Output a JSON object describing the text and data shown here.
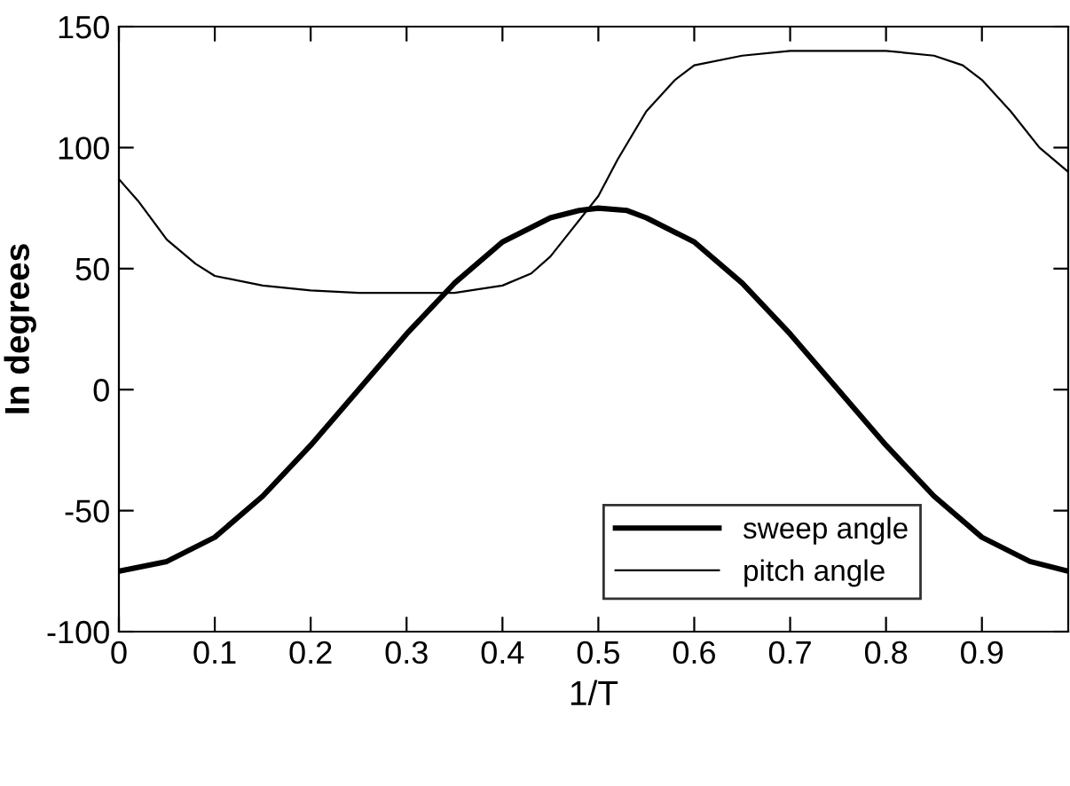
{
  "chart_data": {
    "type": "line",
    "xlabel": "1/T",
    "ylabel": "In degrees",
    "xlim": [
      0,
      0.99
    ],
    "ylim": [
      -100,
      150
    ],
    "xticks": [
      0,
      0.1,
      0.2,
      0.3,
      0.4,
      0.5,
      0.6,
      0.7,
      0.8,
      0.9
    ],
    "yticks": [
      -100,
      -50,
      0,
      50,
      100,
      150
    ],
    "grid": false,
    "legend": "bottom right",
    "marker": "none",
    "line_style": "solid",
    "series": [
      {
        "name": "sweep angle",
        "color": "#000000",
        "x": [
          0,
          0.05,
          0.1,
          0.15,
          0.2,
          0.25,
          0.3,
          0.35,
          0.4,
          0.45,
          0.48,
          0.5,
          0.53,
          0.55,
          0.6,
          0.65,
          0.7,
          0.75,
          0.8,
          0.85,
          0.9,
          0.95,
          0.99
        ],
        "values": [
          -75,
          -71,
          -61,
          -44,
          -23,
          0,
          23,
          44,
          61,
          71,
          74,
          75,
          74,
          71,
          61,
          44,
          23,
          0,
          -23,
          -44,
          -61,
          -71,
          -75
        ]
      },
      {
        "name": "pitch angle",
        "color": "#000000",
        "x": [
          0,
          0.02,
          0.05,
          0.08,
          0.1,
          0.15,
          0.2,
          0.25,
          0.3,
          0.35,
          0.4,
          0.43,
          0.45,
          0.47,
          0.5,
          0.52,
          0.55,
          0.58,
          0.6,
          0.65,
          0.7,
          0.75,
          0.8,
          0.85,
          0.88,
          0.9,
          0.93,
          0.96,
          0.99
        ],
        "values": [
          87,
          78,
          62,
          52,
          47,
          43,
          41,
          40,
          40,
          40,
          43,
          48,
          55,
          65,
          80,
          95,
          115,
          128,
          134,
          138,
          140,
          140,
          140,
          138,
          134,
          128,
          115,
          100,
          90
        ]
      }
    ]
  }
}
